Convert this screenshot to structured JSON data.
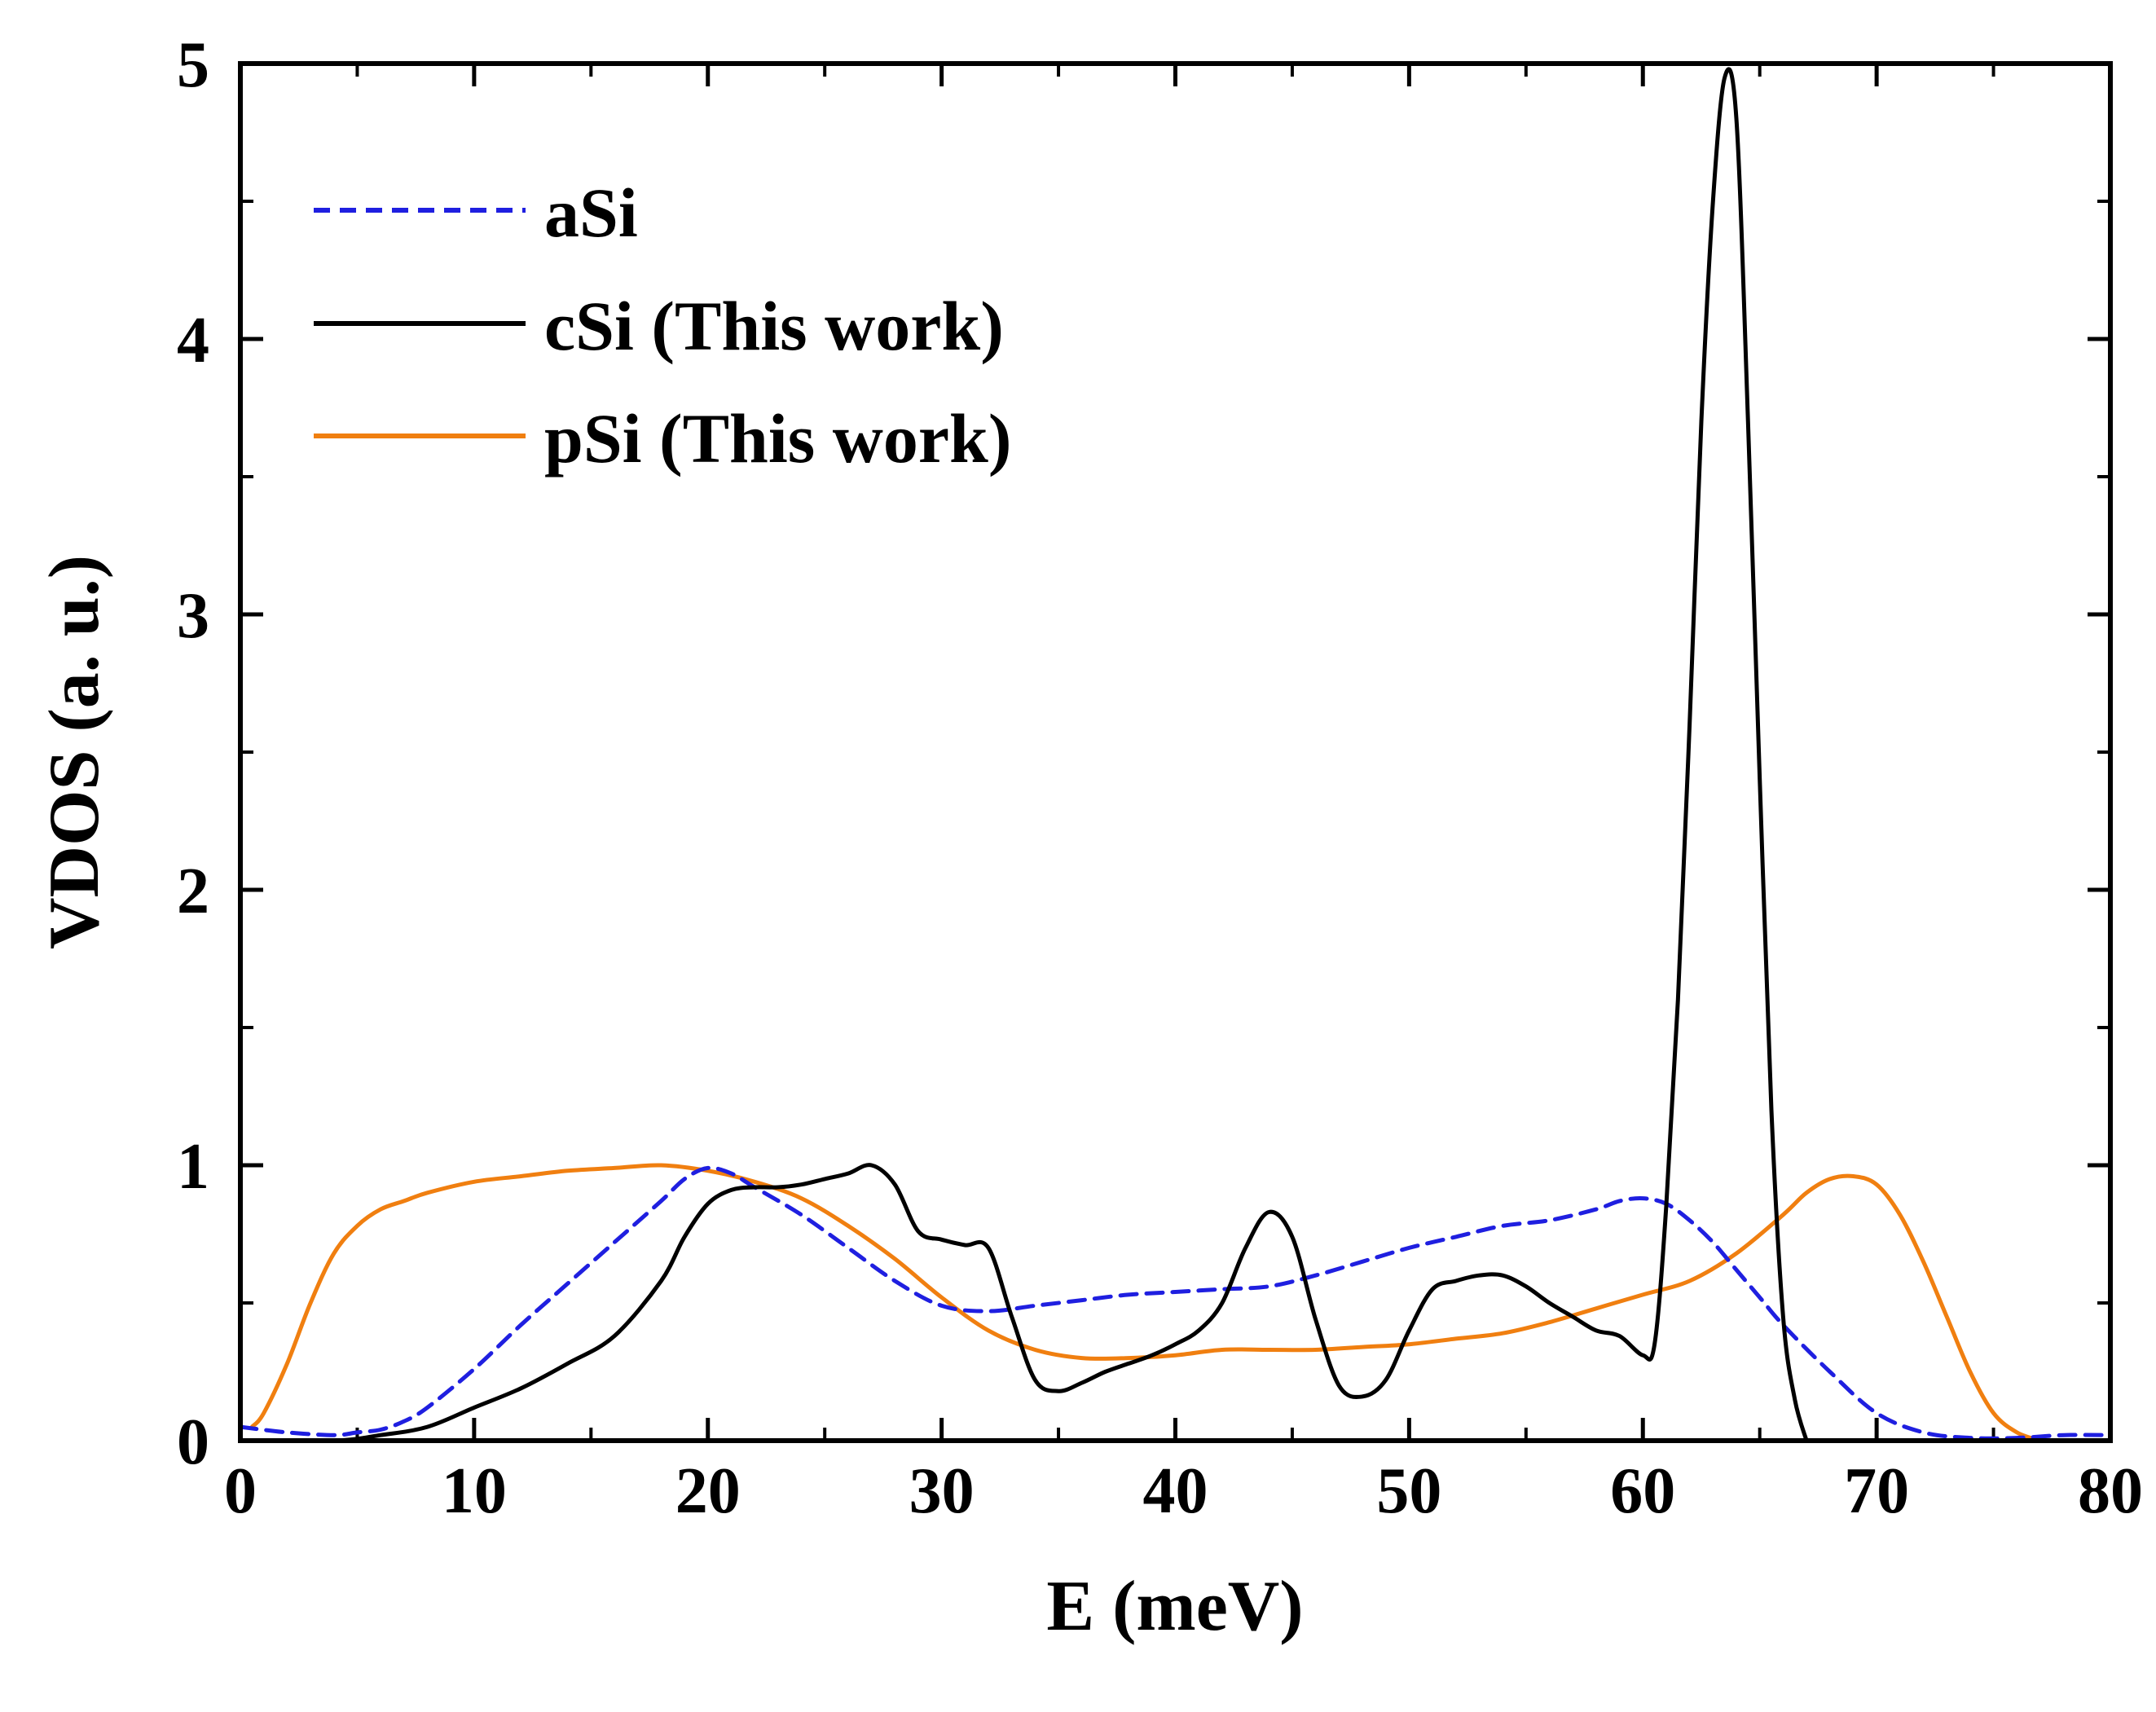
{
  "chart_data": {
    "type": "line",
    "title": "",
    "xlabel": "E (meV)",
    "ylabel": "VDOS (a. u.)",
    "xlim": [
      0,
      80
    ],
    "ylim": [
      0,
      5
    ],
    "x_ticks": [
      0,
      10,
      20,
      30,
      40,
      50,
      60,
      70,
      80
    ],
    "y_ticks": [
      0,
      1,
      2,
      3,
      4,
      5
    ],
    "grid": false,
    "legend_position": "top-left",
    "series": [
      {
        "name": "aSi",
        "color": "#1f1fe0",
        "dash": "dashed",
        "x": [
          0,
          2,
          4,
          5,
          6,
          7,
          8,
          10,
          12,
          14,
          16,
          18,
          19,
          20,
          21,
          22,
          24,
          26,
          28,
          30,
          32,
          34,
          36,
          38,
          40,
          42,
          44,
          46,
          48,
          50,
          52,
          54,
          56,
          58,
          59,
          60,
          61,
          62,
          63,
          64,
          65,
          66,
          68,
          70,
          72,
          74,
          76,
          78,
          80
        ],
        "y": [
          0.05,
          0.03,
          0.02,
          0.03,
          0.04,
          0.07,
          0.12,
          0.26,
          0.42,
          0.57,
          0.72,
          0.87,
          0.95,
          0.99,
          0.97,
          0.92,
          0.82,
          0.7,
          0.58,
          0.49,
          0.47,
          0.49,
          0.51,
          0.53,
          0.54,
          0.55,
          0.56,
          0.6,
          0.65,
          0.7,
          0.74,
          0.78,
          0.8,
          0.84,
          0.87,
          0.88,
          0.86,
          0.8,
          0.72,
          0.62,
          0.52,
          0.42,
          0.25,
          0.1,
          0.03,
          0.01,
          0.01,
          0.02,
          0.02
        ],
        "values": [
          0.05,
          0.03,
          0.02,
          0.03,
          0.04,
          0.07,
          0.12,
          0.26,
          0.42,
          0.57,
          0.72,
          0.87,
          0.95,
          0.99,
          0.97,
          0.92,
          0.82,
          0.7,
          0.58,
          0.49,
          0.47,
          0.49,
          0.51,
          0.53,
          0.54,
          0.55,
          0.56,
          0.6,
          0.65,
          0.7,
          0.74,
          0.78,
          0.8,
          0.84,
          0.87,
          0.88,
          0.86,
          0.8,
          0.72,
          0.62,
          0.52,
          0.42,
          0.25,
          0.1,
          0.03,
          0.01,
          0.01,
          0.02,
          0.02
        ]
      },
      {
        "name": "cSi (This work)",
        "color": "#000000",
        "dash": "solid",
        "x": [
          0,
          4,
          6,
          8,
          10,
          12,
          14,
          16,
          18,
          19,
          20,
          21,
          22,
          23,
          24,
          25,
          26,
          27,
          28,
          29,
          30,
          31,
          32,
          33,
          34,
          35,
          36,
          37,
          38,
          39,
          40,
          41,
          42,
          43,
          44,
          45,
          46,
          47,
          48,
          49,
          50,
          51,
          52,
          53,
          54,
          55,
          56,
          57,
          58,
          59,
          60,
          60.5,
          61,
          61.5,
          62,
          62.5,
          63,
          63.5,
          64,
          64.5,
          65,
          65.5,
          66,
          66.5,
          67
        ],
        "y": [
          0,
          0,
          0.02,
          0.05,
          0.12,
          0.19,
          0.28,
          0.38,
          0.58,
          0.74,
          0.86,
          0.91,
          0.92,
          0.92,
          0.93,
          0.95,
          0.97,
          1.0,
          0.93,
          0.76,
          0.73,
          0.71,
          0.7,
          0.45,
          0.22,
          0.18,
          0.21,
          0.25,
          0.28,
          0.31,
          0.35,
          0.4,
          0.5,
          0.7,
          0.83,
          0.74,
          0.44,
          0.2,
          0.16,
          0.22,
          0.4,
          0.55,
          0.58,
          0.6,
          0.6,
          0.56,
          0.5,
          0.45,
          0.4,
          0.38,
          0.31,
          0.35,
          0.85,
          1.6,
          2.6,
          3.7,
          4.5,
          4.95,
          4.8,
          3.7,
          2.4,
          1.2,
          0.45,
          0.15,
          0.0
        ]
      },
      {
        "name": "pSi (This work)",
        "color": "#f07f10",
        "dash": "solid",
        "x": [
          0.5,
          1,
          2,
          3,
          4,
          5,
          6,
          7,
          8,
          10,
          12,
          14,
          16,
          18,
          20,
          22,
          24,
          26,
          28,
          30,
          32,
          34,
          36,
          38,
          40,
          42,
          44,
          46,
          48,
          50,
          52,
          54,
          56,
          58,
          60,
          62,
          64,
          66,
          67,
          68,
          69,
          70,
          71,
          72,
          73,
          74,
          75,
          76,
          77
        ],
        "y": [
          0.05,
          0.1,
          0.28,
          0.5,
          0.68,
          0.78,
          0.84,
          0.87,
          0.9,
          0.94,
          0.96,
          0.98,
          0.99,
          1.0,
          0.98,
          0.94,
          0.88,
          0.78,
          0.66,
          0.52,
          0.4,
          0.33,
          0.3,
          0.3,
          0.31,
          0.33,
          0.33,
          0.33,
          0.34,
          0.35,
          0.37,
          0.39,
          0.43,
          0.48,
          0.53,
          0.58,
          0.68,
          0.82,
          0.9,
          0.95,
          0.96,
          0.93,
          0.82,
          0.65,
          0.45,
          0.25,
          0.1,
          0.03,
          0.0
        ]
      }
    ]
  }
}
